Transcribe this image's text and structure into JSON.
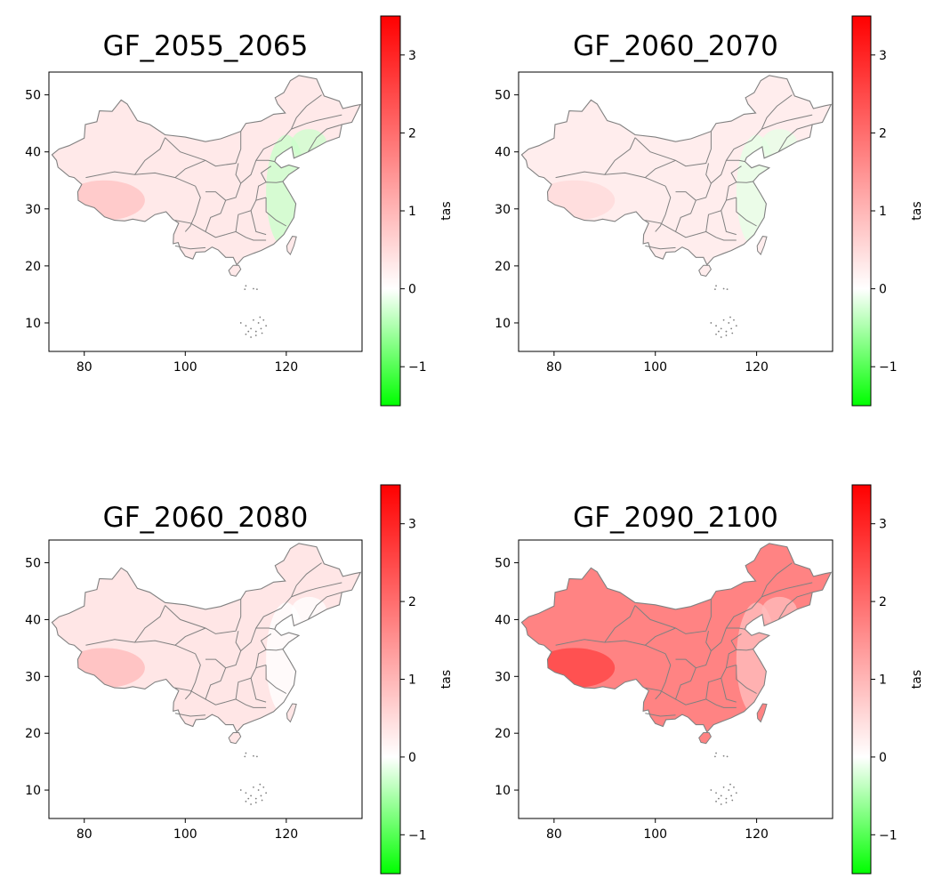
{
  "figure": {
    "colorbar_gradient": [
      "#00ff00",
      "#ffffff",
      "#ff0000"
    ],
    "colorbar_label": "tas",
    "colorbar_range": [
      -1.5,
      3.5
    ],
    "colorbar_ticks": [
      "−1",
      "0",
      "1",
      "2",
      "3"
    ],
    "map_fill_colors": [
      "#ffd6d6",
      "#ffdede",
      "#ffcece",
      "#f05050"
    ],
    "map_border_color": "#808080"
  },
  "chart_data": [
    {
      "type": "heatmap",
      "title": "GF_2055_2065",
      "xlim": [
        73,
        135
      ],
      "ylim": [
        5,
        54
      ],
      "xticks": [
        "80",
        "100",
        "120"
      ],
      "yticks": [
        "10",
        "20",
        "30",
        "40",
        "50"
      ],
      "colorbar": {
        "label": "tas",
        "range": [
          -1.5,
          3.5
        ],
        "ticks": [
          "−1",
          "0",
          "1",
          "2",
          "3"
        ]
      },
      "regions": [
        {
          "name": "general",
          "value": 0.3
        },
        {
          "name": "southwest Tibet",
          "value": 0.8
        },
        {
          "name": "east coast",
          "value": -0.3
        }
      ]
    },
    {
      "type": "heatmap",
      "title": "GF_2060_2070",
      "xlim": [
        73,
        135
      ],
      "ylim": [
        5,
        54
      ],
      "xticks": [
        "80",
        "100",
        "120"
      ],
      "yticks": [
        "10",
        "20",
        "30",
        "40",
        "50"
      ],
      "colorbar": {
        "label": "tas",
        "range": [
          -1.5,
          3.5
        ],
        "ticks": [
          "−1",
          "0",
          "1",
          "2",
          "3"
        ]
      },
      "regions": [
        {
          "name": "general",
          "value": 0.25
        },
        {
          "name": "southwest Tibet",
          "value": 0.5
        },
        {
          "name": "east coast",
          "value": -0.15
        }
      ]
    },
    {
      "type": "heatmap",
      "title": "GF_2060_2080",
      "xlim": [
        73,
        135
      ],
      "ylim": [
        5,
        54
      ],
      "xticks": [
        "80",
        "100",
        "120"
      ],
      "yticks": [
        "10",
        "20",
        "30",
        "40",
        "50"
      ],
      "colorbar": {
        "label": "tas",
        "range": [
          -1.5,
          3.5
        ],
        "ticks": [
          "−1",
          "0",
          "1",
          "2",
          "3"
        ]
      },
      "regions": [
        {
          "name": "general",
          "value": 0.35
        },
        {
          "name": "southwest Tibet",
          "value": 0.9
        },
        {
          "name": "east coast",
          "value": 0.0
        }
      ]
    },
    {
      "type": "heatmap",
      "title": "GF_2090_2100",
      "xlim": [
        73,
        135
      ],
      "ylim": [
        5,
        54
      ],
      "xticks": [
        "80",
        "100",
        "120"
      ],
      "yticks": [
        "10",
        "20",
        "30",
        "40",
        "50"
      ],
      "colorbar": {
        "label": "tas",
        "range": [
          -1.5,
          3.5
        ],
        "ticks": [
          "−1",
          "0",
          "1",
          "2",
          "3"
        ]
      },
      "regions": [
        {
          "name": "general",
          "value": 1.7
        },
        {
          "name": "southwest Tibet",
          "value": 2.5
        },
        {
          "name": "east coast",
          "value": 0.9
        }
      ]
    }
  ]
}
